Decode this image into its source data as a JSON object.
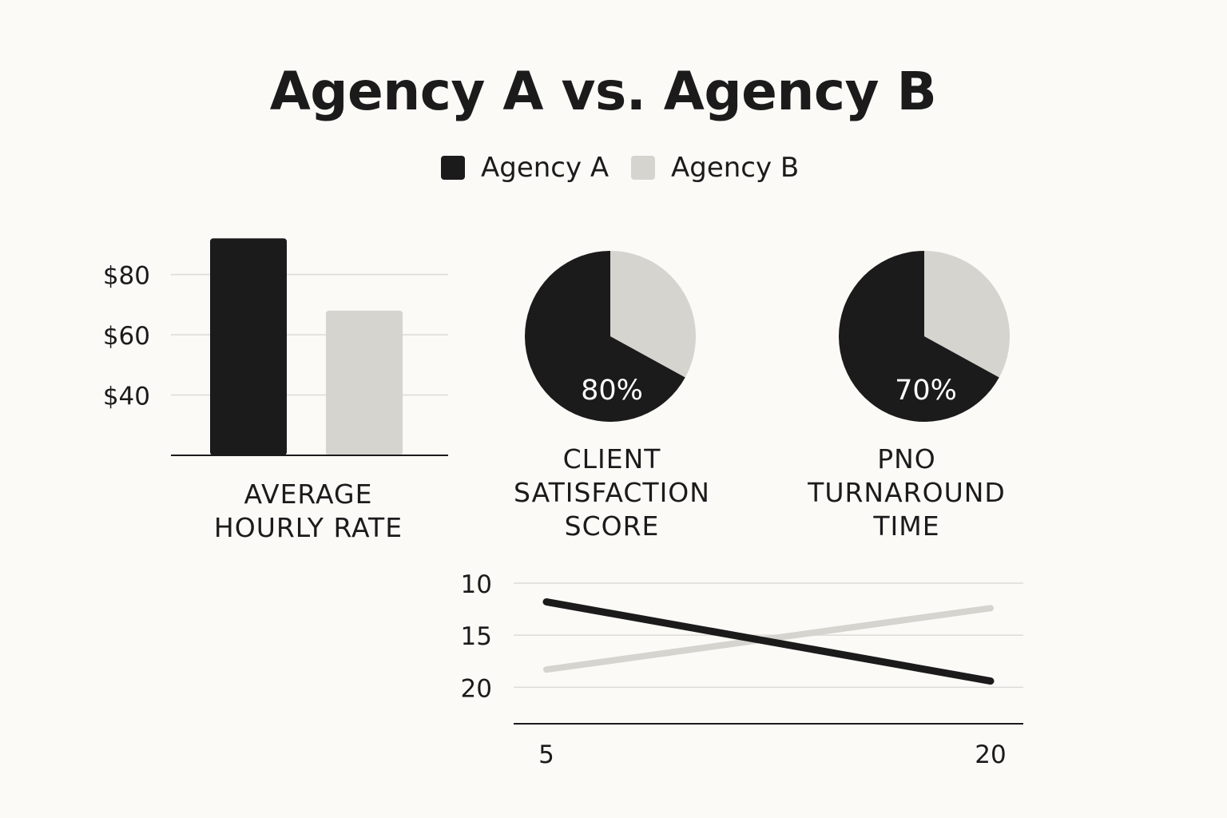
{
  "title": "Agency A vs. Agency B",
  "legend": [
    {
      "label": "Agency A",
      "color": "#1b1b1b"
    },
    {
      "label": "Agency B",
      "color": "#d6d4cf"
    }
  ],
  "colors": {
    "agency_a": "#1b1b1b",
    "agency_b": "#d6d4cf",
    "grid": "#dcdbd6",
    "background": "#fbfaf7"
  },
  "chart_data": [
    {
      "type": "bar",
      "caption": "AVERAGE HOURLY RATE",
      "categories": [
        "Agency A",
        "Agency B"
      ],
      "series": [
        {
          "values": [
            92,
            68
          ]
        }
      ],
      "yticks": [
        "$40",
        "$60",
        "$80"
      ],
      "ytick_values": [
        40,
        60,
        80
      ],
      "ylim": [
        20,
        95
      ],
      "grid": true
    },
    {
      "type": "pie",
      "caption": "CLIENT SATISFACTION SCORE",
      "label": "80%",
      "slices": [
        {
          "name": "Agency A",
          "value": 67
        },
        {
          "name": "Agency B",
          "value": 33
        }
      ]
    },
    {
      "type": "pie",
      "caption": "PNO TURNAROUND TIME",
      "label": "70%",
      "slices": [
        {
          "name": "Agency A",
          "value": 67
        },
        {
          "name": "Agency B",
          "value": 33
        }
      ]
    },
    {
      "type": "line",
      "x": [
        5,
        20
      ],
      "xticks": [
        "5",
        "20"
      ],
      "xlim": [
        5,
        20
      ],
      "yticks": [
        "10",
        "15",
        "20"
      ],
      "ytick_values": [
        10,
        15,
        20
      ],
      "ylim": [
        10,
        23.5
      ],
      "y_inverted": true,
      "grid": true,
      "series": [
        {
          "key": "agency_a",
          "values": [
            11.8,
            19.4
          ]
        },
        {
          "key": "agency_b",
          "values": [
            18.3,
            12.4
          ]
        }
      ]
    }
  ]
}
